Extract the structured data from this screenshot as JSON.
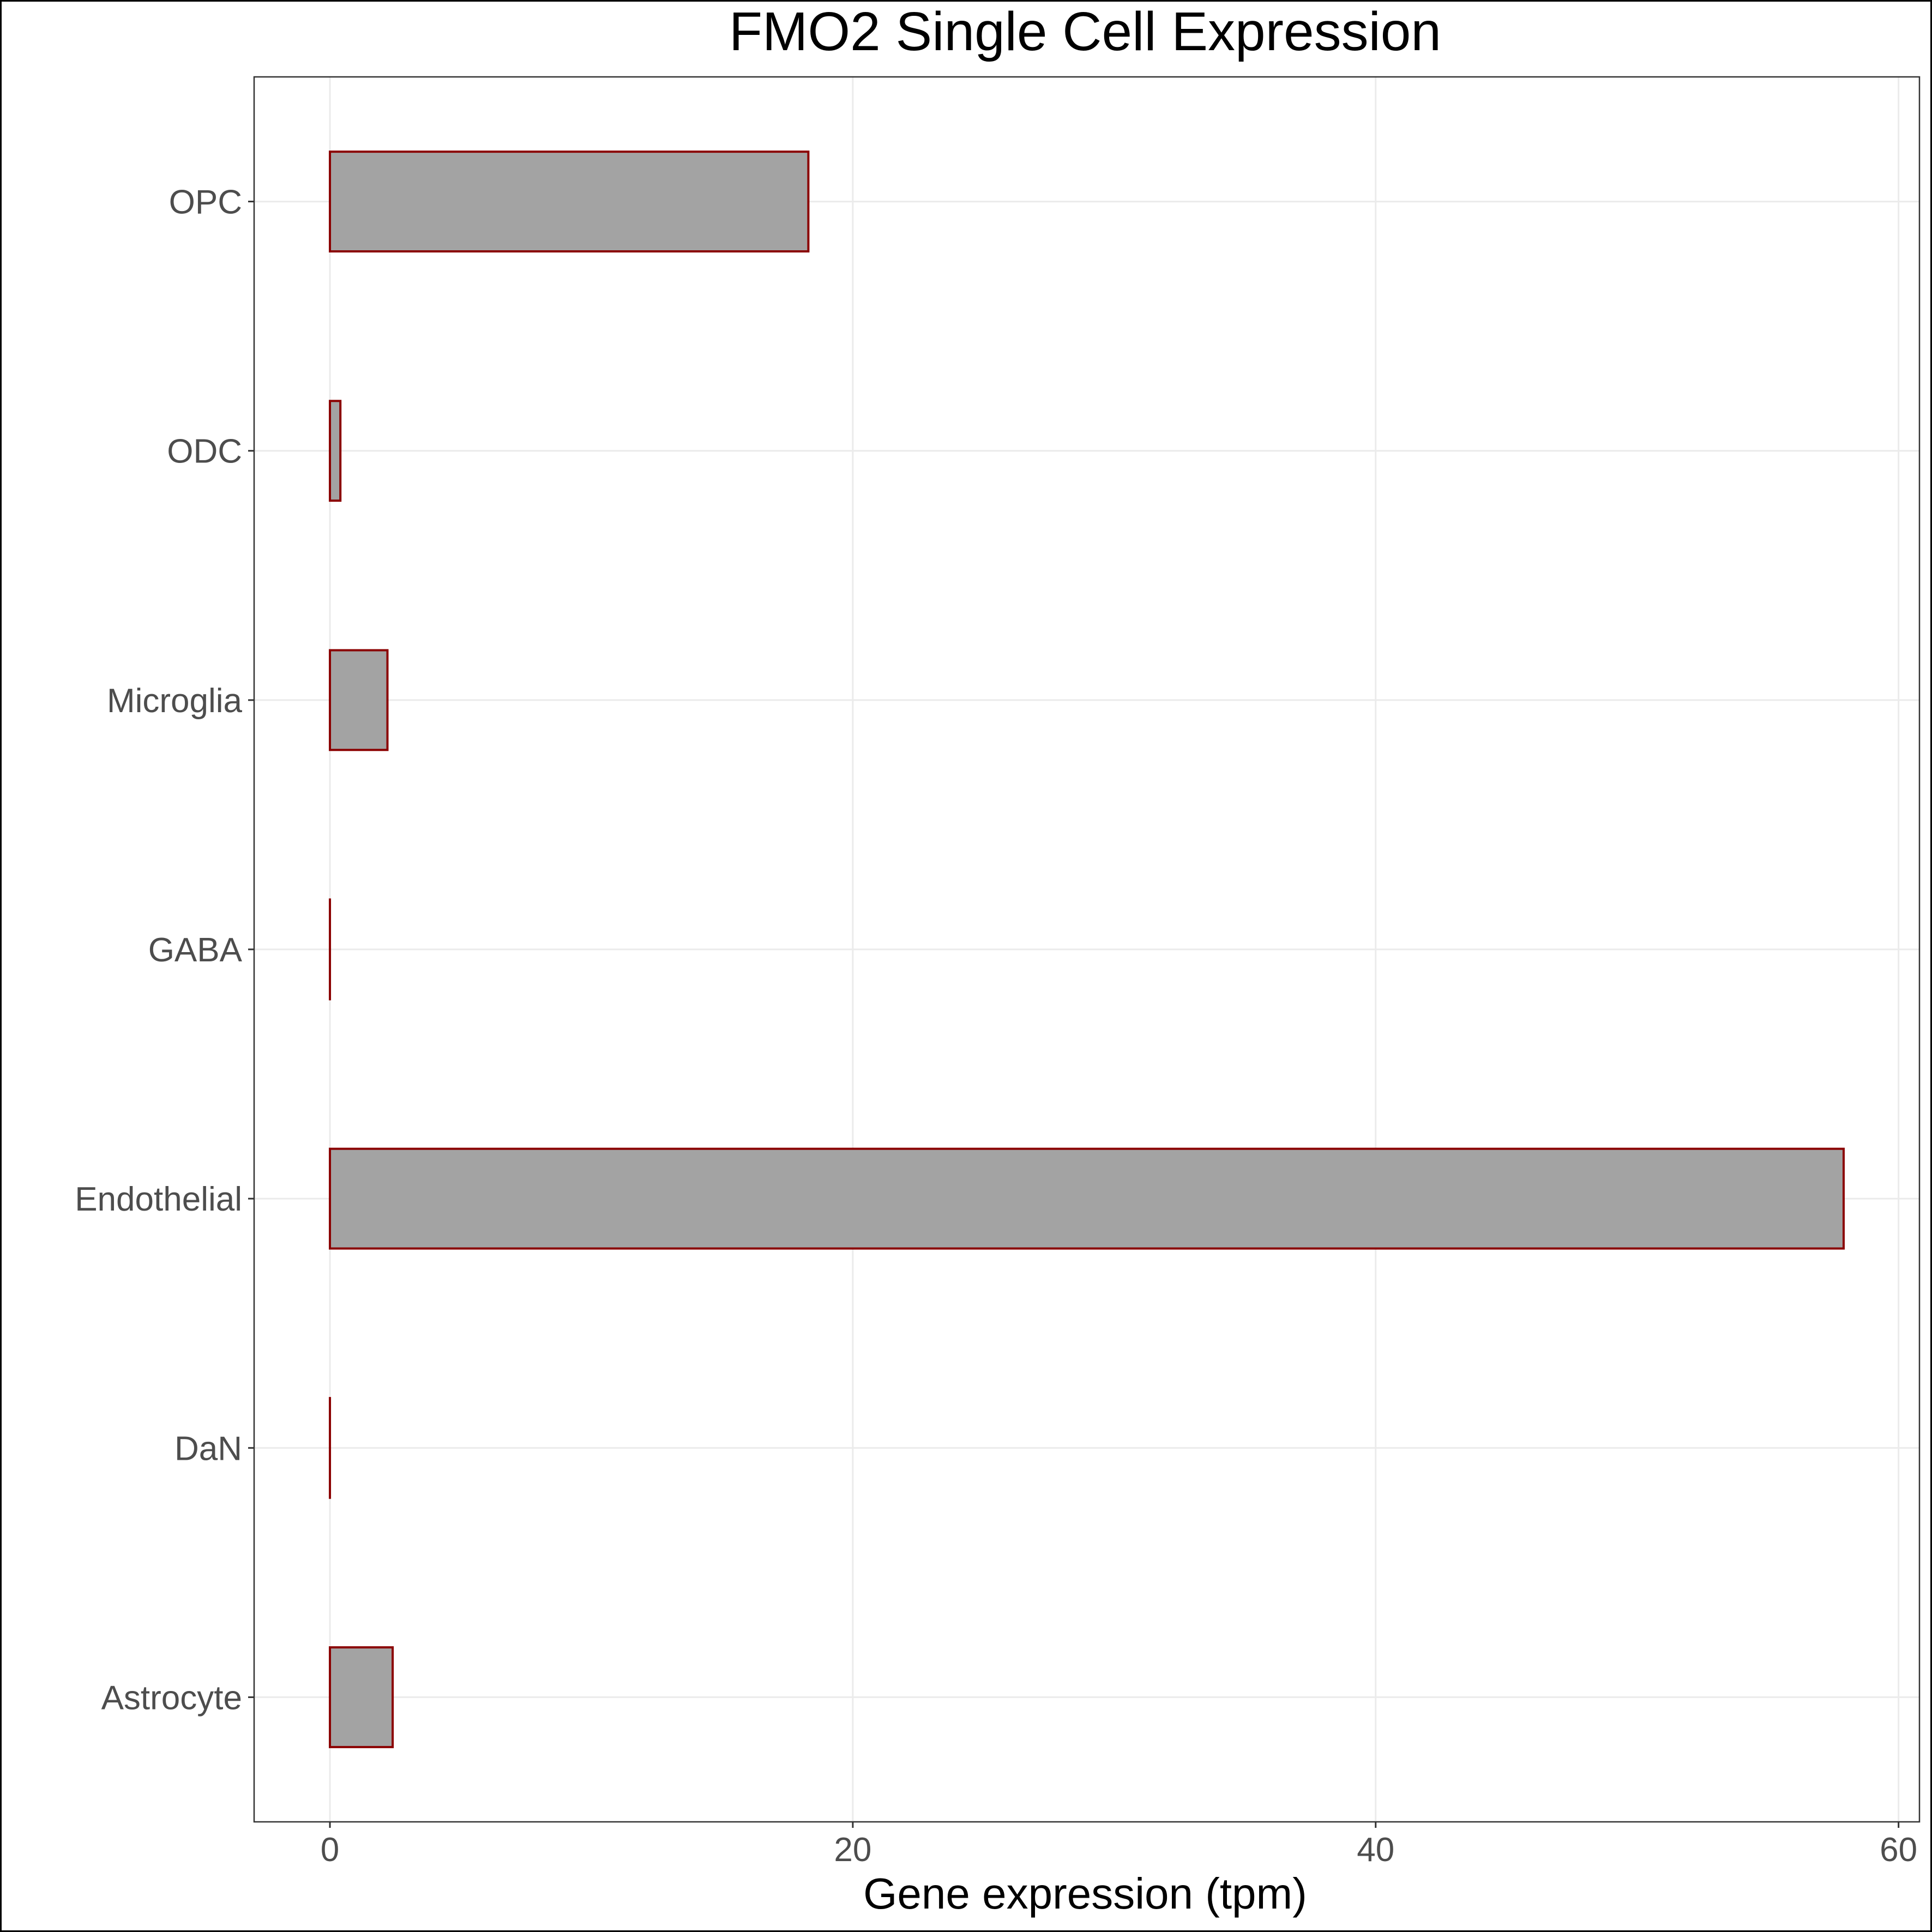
{
  "chart_data": {
    "type": "bar",
    "orientation": "horizontal",
    "title": "FMO2 Single Cell Expression",
    "xlabel": "Gene expression (tpm)",
    "ylabel": "",
    "categories": [
      "Astrocyte",
      "DaN",
      "Endothelial",
      "GABA",
      "Microglia",
      "ODC",
      "OPC"
    ],
    "values": [
      2.4,
      0.0,
      57.9,
      0.0,
      2.2,
      0.4,
      18.3
    ],
    "xlim": [
      -2.9,
      60.8
    ],
    "xticks": [
      0,
      20,
      40,
      60
    ],
    "xtick_labels": [
      "0",
      "20",
      "40",
      "60"
    ],
    "grid": true,
    "legend": "none",
    "colors": {
      "bar_fill": "#a3a3a3",
      "bar_stroke": "#8b0000",
      "grid": "#ebebeb",
      "panel_border": "#333333",
      "outer_border": "#000000",
      "background": "#ffffff"
    }
  }
}
